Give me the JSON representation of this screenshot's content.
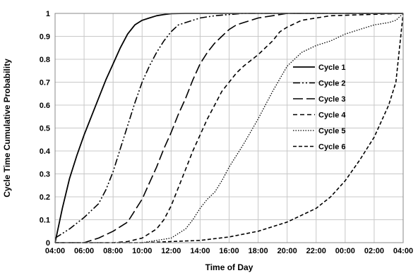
{
  "chart_data": {
    "type": "line",
    "title": "",
    "xlabel": "Time of Day",
    "ylabel": "Cycle Time Cumulative Probability",
    "ylim": [
      0,
      1
    ],
    "yticks": [
      "0",
      "0.1",
      "0.2",
      "0.3",
      "0.4",
      "0.5",
      "0.6",
      "0.7",
      "0.8",
      "0.9",
      "1"
    ],
    "x_ticks": [
      "04:00",
      "06:00",
      "08:00",
      "10:00",
      "12:00",
      "14:00",
      "16:00",
      "18:00",
      "20:00",
      "22:00",
      "00:00",
      "02:00",
      "04:00"
    ],
    "grid": "horizontal and vertical",
    "legend_position": "right-center",
    "series": [
      {
        "name": "Cycle 1",
        "dash": "solid",
        "x": [
          "04:00",
          "04:30",
          "05:00",
          "05:30",
          "06:00",
          "06:30",
          "07:00",
          "07:30",
          "08:00",
          "08:30",
          "09:00",
          "09:30",
          "10:00",
          "10:30",
          "11:00",
          "11:30",
          "12:00",
          "13:00",
          "16:00",
          "04:00"
        ],
        "values": [
          0,
          0.15,
          0.28,
          0.38,
          0.47,
          0.55,
          0.63,
          0.71,
          0.78,
          0.85,
          0.91,
          0.95,
          0.97,
          0.98,
          0.99,
          0.995,
          0.999,
          1,
          1,
          1
        ]
      },
      {
        "name": "Cycle 2",
        "dash": "long-dash-dot-dot",
        "x": [
          "04:00",
          "05:00",
          "06:00",
          "07:00",
          "07:30",
          "08:00",
          "08:30",
          "09:00",
          "09:30",
          "10:00",
          "10:30",
          "11:00",
          "11:30",
          "12:00",
          "12:30",
          "13:00",
          "13:30",
          "14:00",
          "15:00",
          "16:00",
          "17:00",
          "04:00"
        ],
        "values": [
          0.02,
          0.06,
          0.11,
          0.17,
          0.23,
          0.31,
          0.41,
          0.51,
          0.61,
          0.7,
          0.77,
          0.83,
          0.88,
          0.92,
          0.95,
          0.96,
          0.97,
          0.98,
          0.99,
          0.995,
          1,
          1
        ]
      },
      {
        "name": "Cycle 3",
        "dash": "long-dash",
        "x": [
          "04:00",
          "06:00",
          "07:00",
          "08:00",
          "09:00",
          "10:00",
          "10:30",
          "11:00",
          "11:30",
          "12:00",
          "12:30",
          "13:00",
          "13:30",
          "14:00",
          "14:30",
          "15:00",
          "15:30",
          "16:00",
          "16:30",
          "17:00",
          "17:30",
          "18:00",
          "19:00",
          "20:00",
          "04:00"
        ],
        "values": [
          0,
          0,
          0.02,
          0.05,
          0.09,
          0.19,
          0.26,
          0.33,
          0.41,
          0.48,
          0.56,
          0.63,
          0.71,
          0.78,
          0.83,
          0.87,
          0.9,
          0.93,
          0.95,
          0.96,
          0.97,
          0.98,
          0.99,
          1,
          1
        ]
      },
      {
        "name": "Cycle 4",
        "dash": "dash",
        "x": [
          "04:00",
          "08:00",
          "09:00",
          "10:00",
          "11:00",
          "11:30",
          "12:00",
          "12:30",
          "13:00",
          "13:30",
          "14:00",
          "14:30",
          "15:00",
          "15:30",
          "16:00",
          "16:30",
          "17:00",
          "18:00",
          "19:00",
          "19:30",
          "20:00",
          "21:00",
          "22:00",
          "23:00",
          "04:00"
        ],
        "values": [
          0,
          0,
          0.005,
          0.02,
          0.06,
          0.1,
          0.16,
          0.24,
          0.32,
          0.4,
          0.47,
          0.54,
          0.6,
          0.66,
          0.7,
          0.74,
          0.77,
          0.82,
          0.88,
          0.92,
          0.94,
          0.97,
          0.98,
          0.99,
          1
        ]
      },
      {
        "name": "Cycle 5",
        "dash": "dot",
        "x": [
          "04:00",
          "10:00",
          "11:00",
          "12:00",
          "13:00",
          "13:30",
          "14:00",
          "14:30",
          "15:00",
          "15:30",
          "16:00",
          "17:00",
          "18:00",
          "19:00",
          "20:00",
          "21:00",
          "22:00",
          "23:00",
          "00:00",
          "01:00",
          "02:00",
          "03:00",
          "03:30",
          "04:00"
        ],
        "values": [
          0,
          0,
          0.01,
          0.02,
          0.06,
          0.1,
          0.15,
          0.19,
          0.22,
          0.27,
          0.33,
          0.43,
          0.54,
          0.66,
          0.77,
          0.83,
          0.86,
          0.88,
          0.91,
          0.93,
          0.95,
          0.96,
          0.97,
          1
        ]
      },
      {
        "name": "Cycle 6",
        "dash": "medium-dash",
        "x": [
          "04:00",
          "10:00",
          "12:00",
          "14:00",
          "16:00",
          "18:00",
          "20:00",
          "22:00",
          "23:00",
          "00:00",
          "01:00",
          "02:00",
          "02:30",
          "03:00",
          "03:30",
          "04:00"
        ],
        "values": [
          0,
          0,
          0.005,
          0.01,
          0.025,
          0.05,
          0.09,
          0.15,
          0.2,
          0.27,
          0.36,
          0.46,
          0.53,
          0.6,
          0.7,
          1
        ]
      }
    ]
  }
}
